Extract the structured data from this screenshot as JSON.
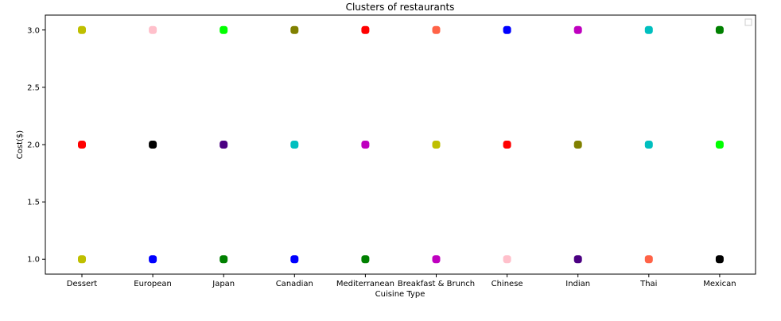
{
  "chart_data": {
    "type": "scatter",
    "title": "Clusters of restaurants",
    "xlabel": "Cuisine Type",
    "ylabel": "Cost($)",
    "categories": [
      "Dessert",
      "European",
      "Japan",
      "Canadian",
      "Mediterranean",
      "Breakfast & Brunch",
      "Chinese",
      "Indian",
      "Thai",
      "Mexican"
    ],
    "ylim": [
      0.87,
      3.13
    ],
    "yticks": [
      "1.0",
      "1.5",
      "2.0",
      "2.5",
      "3.0"
    ],
    "grid": false,
    "legend": "top-right (empty)",
    "points": [
      {
        "x": "Dessert",
        "y": 3,
        "color": "#bfbf00"
      },
      {
        "x": "Dessert",
        "y": 2,
        "color": "#ff0000"
      },
      {
        "x": "Dessert",
        "y": 1,
        "color": "#bfbf00"
      },
      {
        "x": "European",
        "y": 3,
        "color": "#ffc0cb"
      },
      {
        "x": "European",
        "y": 2,
        "color": "#000000"
      },
      {
        "x": "European",
        "y": 1,
        "color": "#0000ff"
      },
      {
        "x": "Japan",
        "y": 3,
        "color": "#00ff00"
      },
      {
        "x": "Japan",
        "y": 2,
        "color": "#4b0082"
      },
      {
        "x": "Japan",
        "y": 1,
        "color": "#008000"
      },
      {
        "x": "Canadian",
        "y": 3,
        "color": "#808000"
      },
      {
        "x": "Canadian",
        "y": 2,
        "color": "#00bfbf"
      },
      {
        "x": "Canadian",
        "y": 1,
        "color": "#0000ff"
      },
      {
        "x": "Mediterranean",
        "y": 3,
        "color": "#ff0000"
      },
      {
        "x": "Mediterranean",
        "y": 2,
        "color": "#bf00bf"
      },
      {
        "x": "Mediterranean",
        "y": 1,
        "color": "#008000"
      },
      {
        "x": "Breakfast & Brunch",
        "y": 3,
        "color": "#ff6347"
      },
      {
        "x": "Breakfast & Brunch",
        "y": 2,
        "color": "#bfbf00"
      },
      {
        "x": "Breakfast & Brunch",
        "y": 1,
        "color": "#bf00bf"
      },
      {
        "x": "Chinese",
        "y": 3,
        "color": "#0000ff"
      },
      {
        "x": "Chinese",
        "y": 2,
        "color": "#ff0000"
      },
      {
        "x": "Chinese",
        "y": 1,
        "color": "#ffc0cb"
      },
      {
        "x": "Indian",
        "y": 3,
        "color": "#bf00bf"
      },
      {
        "x": "Indian",
        "y": 2,
        "color": "#808000"
      },
      {
        "x": "Indian",
        "y": 1,
        "color": "#4b0082"
      },
      {
        "x": "Thai",
        "y": 3,
        "color": "#00bfbf"
      },
      {
        "x": "Thai",
        "y": 2,
        "color": "#00bfbf"
      },
      {
        "x": "Thai",
        "y": 1,
        "color": "#ff6347"
      },
      {
        "x": "Mexican",
        "y": 3,
        "color": "#008000"
      },
      {
        "x": "Mexican",
        "y": 2,
        "color": "#00ff00"
      },
      {
        "x": "Mexican",
        "y": 1,
        "color": "#000000"
      }
    ]
  }
}
